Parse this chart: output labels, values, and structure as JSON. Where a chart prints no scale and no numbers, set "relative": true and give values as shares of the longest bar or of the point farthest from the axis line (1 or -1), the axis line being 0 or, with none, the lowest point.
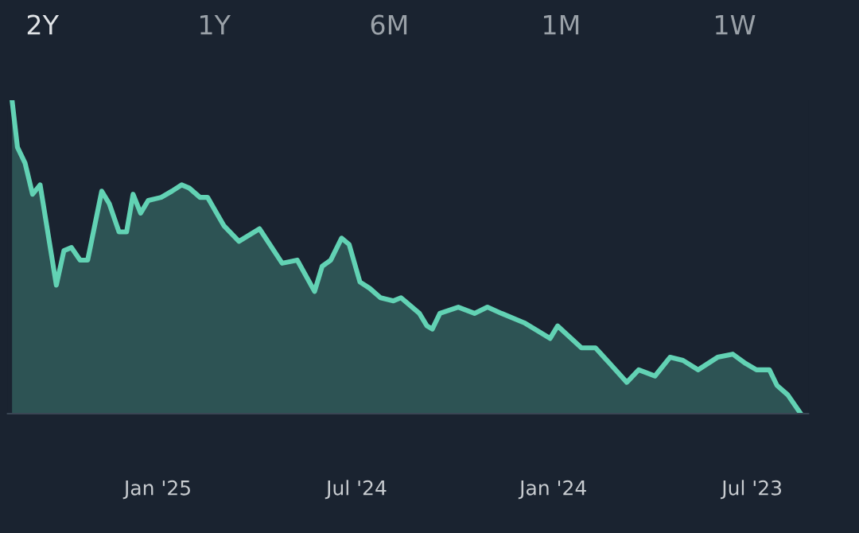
{
  "chart_data": {
    "type": "area",
    "relative": true,
    "annotations": [
      "2Y",
      "1Y",
      "6M",
      "1M",
      "1W"
    ],
    "xlim": [
      "2025-05-20",
      "2023-05-10"
    ],
    "xticks": [
      {
        "value": "2025-01-01",
        "label": "Jan '25"
      },
      {
        "value": "2024-07-01",
        "label": "Jul '24"
      },
      {
        "value": "2024-01-01",
        "label": "Jan '24"
      },
      {
        "value": "2023-07-01",
        "label": "Jul '23"
      }
    ],
    "grid": false,
    "legend": false,
    "series": [
      {
        "color": "#62d2b4",
        "x": [
          "2025-05-16",
          "2025-05-11",
          "2025-05-04",
          "2025-04-27",
          "2025-04-20",
          "2025-04-05",
          "2025-03-29",
          "2025-03-22",
          "2025-03-14",
          "2025-03-07",
          "2025-02-22",
          "2025-02-15",
          "2025-02-06",
          "2025-01-30",
          "2025-01-24",
          "2025-01-17",
          "2025-01-10",
          "2024-12-29",
          "2024-12-19",
          "2024-12-10",
          "2024-12-03",
          "2024-11-23",
          "2024-11-16",
          "2024-11-01",
          "2024-10-18",
          "2024-09-29",
          "2024-09-08",
          "2024-08-25",
          "2024-08-09",
          "2024-08-02",
          "2024-07-25",
          "2024-07-15",
          "2024-07-08",
          "2024-06-28",
          "2024-06-19",
          "2024-06-09",
          "2024-05-28",
          "2024-05-21",
          "2024-05-04",
          "2024-04-27",
          "2024-04-22",
          "2024-04-15",
          "2024-03-29",
          "2024-03-14",
          "2024-03-02",
          "2024-02-18",
          "2024-01-28",
          "2024-01-04",
          "2023-12-28",
          "2023-12-06",
          "2023-11-23",
          "2023-11-15",
          "2023-10-25",
          "2023-10-14",
          "2023-09-29",
          "2023-09-15",
          "2023-09-03",
          "2023-08-20",
          "2023-08-02",
          "2023-07-19",
          "2023-07-07",
          "2023-06-27",
          "2023-06-15",
          "2023-06-08",
          "2023-05-29",
          "2023-05-17"
        ],
        "values": [
          1.0,
          0.85,
          0.8,
          0.7,
          0.73,
          0.41,
          0.52,
          0.53,
          0.49,
          0.49,
          0.71,
          0.67,
          0.58,
          0.58,
          0.7,
          0.64,
          0.68,
          0.69,
          0.71,
          0.73,
          0.72,
          0.69,
          0.69,
          0.6,
          0.55,
          0.59,
          0.48,
          0.49,
          0.39,
          0.47,
          0.49,
          0.56,
          0.54,
          0.42,
          0.4,
          0.37,
          0.36,
          0.37,
          0.32,
          0.28,
          0.27,
          0.32,
          0.34,
          0.32,
          0.34,
          0.32,
          0.29,
          0.24,
          0.28,
          0.21,
          0.21,
          0.18,
          0.1,
          0.14,
          0.12,
          0.18,
          0.17,
          0.14,
          0.18,
          0.19,
          0.16,
          0.14,
          0.14,
          0.09,
          0.06,
          0.0
        ]
      }
    ]
  }
}
